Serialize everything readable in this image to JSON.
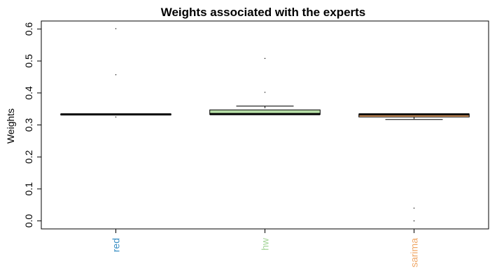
{
  "chart_data": {
    "type": "box",
    "title": "Weights associated with the experts",
    "ylabel": "Weights",
    "xlabel": "",
    "ylim": [
      -0.025,
      0.625
    ],
    "yticks": [
      0.0,
      0.1,
      0.2,
      0.3,
      0.4,
      0.5,
      0.6
    ],
    "ytick_labels": [
      "0.0",
      "0.1",
      "0.2",
      "0.3",
      "0.4",
      "0.5",
      "0.6"
    ],
    "categories": [
      "red",
      "hw",
      "sarima"
    ],
    "category_colors": [
      "#3a8fc4",
      "#a6d69a",
      "#f0a868"
    ],
    "boxes": [
      {
        "name": "red",
        "fill": "#3a8fc4",
        "q1": 0.333,
        "median": 0.333,
        "q3": 0.334,
        "whisker_low": 0.333,
        "whisker_high": 0.334,
        "outliers": [
          0.325,
          0.457,
          0.601
        ]
      },
      {
        "name": "hw",
        "fill": "#b8e0a8",
        "q1": 0.333,
        "median": 0.334,
        "q3": 0.347,
        "whisker_low": 0.333,
        "whisker_high": 0.359,
        "outliers": [
          0.402,
          0.508
        ]
      },
      {
        "name": "sarima",
        "fill": "#f0a868",
        "q1": 0.325,
        "median": 0.333,
        "q3": 0.334,
        "whisker_low": 0.317,
        "whisker_high": 0.334,
        "outliers": [
          0.0,
          0.04
        ]
      }
    ]
  }
}
